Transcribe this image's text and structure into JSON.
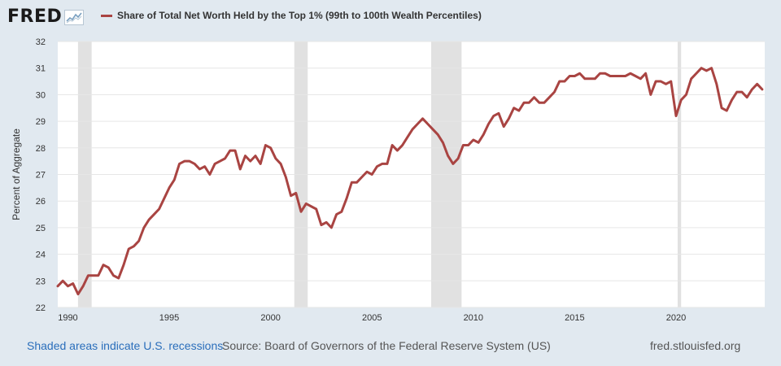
{
  "brand": {
    "logo_text": "FRED"
  },
  "legend": {
    "label": "Share of Total Net Worth Held by the Top 1% (99th to 100th Wealth Percentiles)",
    "color": "#a94442"
  },
  "footer": {
    "recessions_note": "Shaded areas indicate U.S. recessions",
    "source": "Source: Board of Governors of the Federal Reserve System (US)",
    "site": "fred.stlouisfed.org"
  },
  "colors": {
    "background": "#e1e9f0",
    "plot_background": "#ffffff",
    "recession": "#e1e1e1",
    "gridline": "#e6e6e6",
    "series": "#a94442"
  },
  "chart_data": {
    "type": "line",
    "title": "Share of Total Net Worth Held by the Top 1% (99th to 100th Wealth Percentiles)",
    "xlabel": "",
    "ylabel": "Percent of Aggregate",
    "xlim": [
      1989.5,
      2024.375
    ],
    "ylim": [
      22,
      32
    ],
    "y_ticks": [
      22,
      23,
      24,
      25,
      26,
      27,
      28,
      29,
      30,
      31,
      32
    ],
    "x_ticks": [
      1990,
      1995,
      2000,
      2005,
      2010,
      2015,
      2020
    ],
    "x_tick_labels": [
      "1990",
      "1995",
      "2000",
      "2005",
      "2010",
      "2015",
      "2020"
    ],
    "recessions": [
      [
        1990.5,
        1991.17
      ],
      [
        2001.17,
        2001.83
      ],
      [
        2007.92,
        2009.42
      ],
      [
        2020.08,
        2020.25
      ]
    ],
    "series": [
      {
        "name": "Share of Total Net Worth Held by the Top 1% (99th to 100th Wealth Percentiles)",
        "x": [
          1989.5,
          1989.75,
          1990,
          1990.25,
          1990.5,
          1990.75,
          1991,
          1991.25,
          1991.5,
          1991.75,
          1992,
          1992.25,
          1992.5,
          1992.75,
          1993,
          1993.25,
          1993.5,
          1993.75,
          1994,
          1994.25,
          1994.5,
          1994.75,
          1995,
          1995.25,
          1995.5,
          1995.75,
          1996,
          1996.25,
          1996.5,
          1996.75,
          1997,
          1997.25,
          1997.5,
          1997.75,
          1998,
          1998.25,
          1998.5,
          1998.75,
          1999,
          1999.25,
          1999.5,
          1999.75,
          2000,
          2000.25,
          2000.5,
          2000.75,
          2001,
          2001.25,
          2001.5,
          2001.75,
          2002,
          2002.25,
          2002.5,
          2002.75,
          2003,
          2003.25,
          2003.5,
          2003.75,
          2004,
          2004.25,
          2004.5,
          2004.75,
          2005,
          2005.25,
          2005.5,
          2005.75,
          2006,
          2006.25,
          2006.5,
          2006.75,
          2007,
          2007.25,
          2007.5,
          2007.75,
          2008,
          2008.25,
          2008.5,
          2008.75,
          2009,
          2009.25,
          2009.5,
          2009.75,
          2010,
          2010.25,
          2010.5,
          2010.75,
          2011,
          2011.25,
          2011.5,
          2011.75,
          2012,
          2012.25,
          2012.5,
          2012.75,
          2013,
          2013.25,
          2013.5,
          2013.75,
          2014,
          2014.25,
          2014.5,
          2014.75,
          2015,
          2015.25,
          2015.5,
          2015.75,
          2016,
          2016.25,
          2016.5,
          2016.75,
          2017,
          2017.25,
          2017.5,
          2017.75,
          2018,
          2018.25,
          2018.5,
          2018.75,
          2019,
          2019.25,
          2019.5,
          2019.75,
          2020,
          2020.25,
          2020.5,
          2020.75,
          2021,
          2021.25,
          2021.5,
          2021.75,
          2022,
          2022.25,
          2022.5,
          2022.75,
          2023,
          2023.25,
          2023.5,
          2023.75,
          2024,
          2024.25
        ],
        "values": [
          22.8,
          23.0,
          22.8,
          22.9,
          22.5,
          22.8,
          23.2,
          23.2,
          23.2,
          23.6,
          23.5,
          23.2,
          23.1,
          23.6,
          24.2,
          24.3,
          24.5,
          25.0,
          25.3,
          25.5,
          25.7,
          26.1,
          26.5,
          26.8,
          27.4,
          27.5,
          27.5,
          27.4,
          27.2,
          27.3,
          27.0,
          27.4,
          27.5,
          27.6,
          27.9,
          27.9,
          27.2,
          27.7,
          27.5,
          27.7,
          27.4,
          28.1,
          28.0,
          27.6,
          27.4,
          26.9,
          26.2,
          26.3,
          25.6,
          25.9,
          25.8,
          25.7,
          25.1,
          25.2,
          25.0,
          25.5,
          25.6,
          26.1,
          26.7,
          26.7,
          26.9,
          27.1,
          27.0,
          27.3,
          27.4,
          27.4,
          28.1,
          27.9,
          28.1,
          28.4,
          28.7,
          28.9,
          29.1,
          28.9,
          28.7,
          28.5,
          28.2,
          27.7,
          27.4,
          27.6,
          28.1,
          28.1,
          28.3,
          28.2,
          28.5,
          28.9,
          29.2,
          29.3,
          28.8,
          29.1,
          29.5,
          29.4,
          29.7,
          29.7,
          29.9,
          29.7,
          29.7,
          29.9,
          30.1,
          30.5,
          30.5,
          30.7,
          30.7,
          30.8,
          30.6,
          30.6,
          30.6,
          30.8,
          30.8,
          30.7,
          30.7,
          30.7,
          30.7,
          30.8,
          30.7,
          30.6,
          30.8,
          30.0,
          30.5,
          30.5,
          30.4,
          30.5,
          29.2,
          29.8,
          30.0,
          30.6,
          30.8,
          31.0,
          30.9,
          31.0,
          30.4,
          29.5,
          29.4,
          29.8,
          30.1,
          30.1,
          29.9,
          30.2,
          30.4,
          30.2
        ]
      }
    ]
  }
}
